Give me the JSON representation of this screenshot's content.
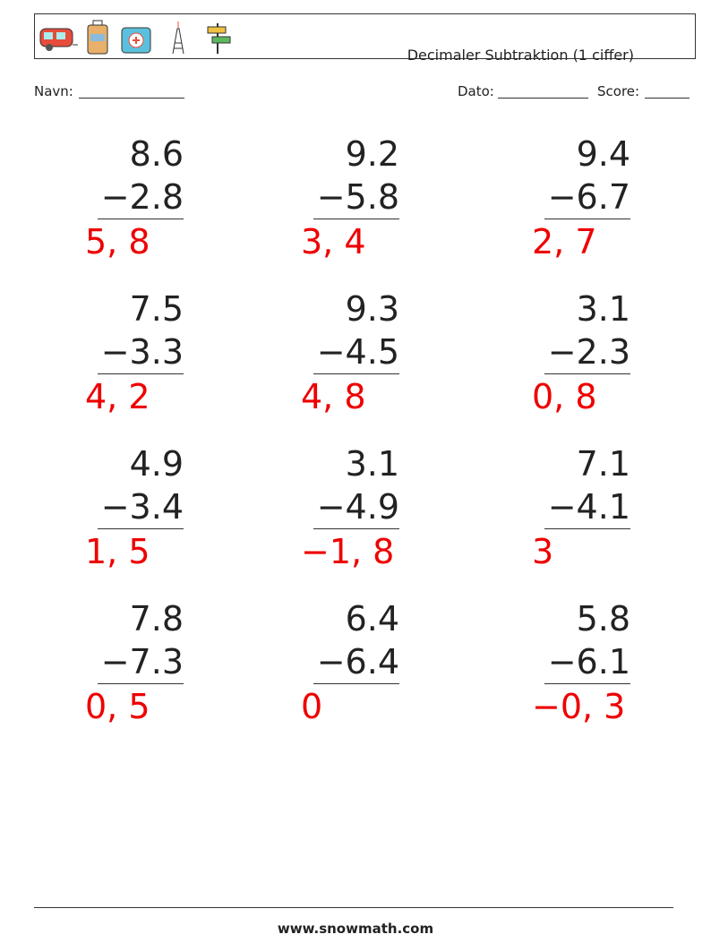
{
  "header": {
    "title": "Decimaler Subtraktion (1 ciffer)",
    "name_label": "Navn:",
    "date_label": "Dato:",
    "score_label": "Score:"
  },
  "problems": [
    {
      "top": "8.6",
      "bottom": "−2.8",
      "answer": "5, 8"
    },
    {
      "top": "9.2",
      "bottom": "−5.8",
      "answer": "3, 4"
    },
    {
      "top": "9.4",
      "bottom": "−6.7",
      "answer": "2, 7"
    },
    {
      "top": "7.5",
      "bottom": "−3.3",
      "answer": "4, 2"
    },
    {
      "top": "9.3",
      "bottom": "−4.5",
      "answer": "4, 8"
    },
    {
      "top": "3.1",
      "bottom": "−2.3",
      "answer": "0, 8"
    },
    {
      "top": "4.9",
      "bottom": "−3.4",
      "answer": "1, 5"
    },
    {
      "top": "3.1",
      "bottom": "−4.9",
      "answer": "−1, 8"
    },
    {
      "top": "7.1",
      "bottom": "−4.1",
      "answer": "3"
    },
    {
      "top": "7.8",
      "bottom": "−7.3",
      "answer": "0, 5"
    },
    {
      "top": "6.4",
      "bottom": "−6.4",
      "answer": "0"
    },
    {
      "top": "5.8",
      "bottom": "−6.1",
      "answer": "−0, 3"
    }
  ],
  "footer": "www.snowmath.com"
}
